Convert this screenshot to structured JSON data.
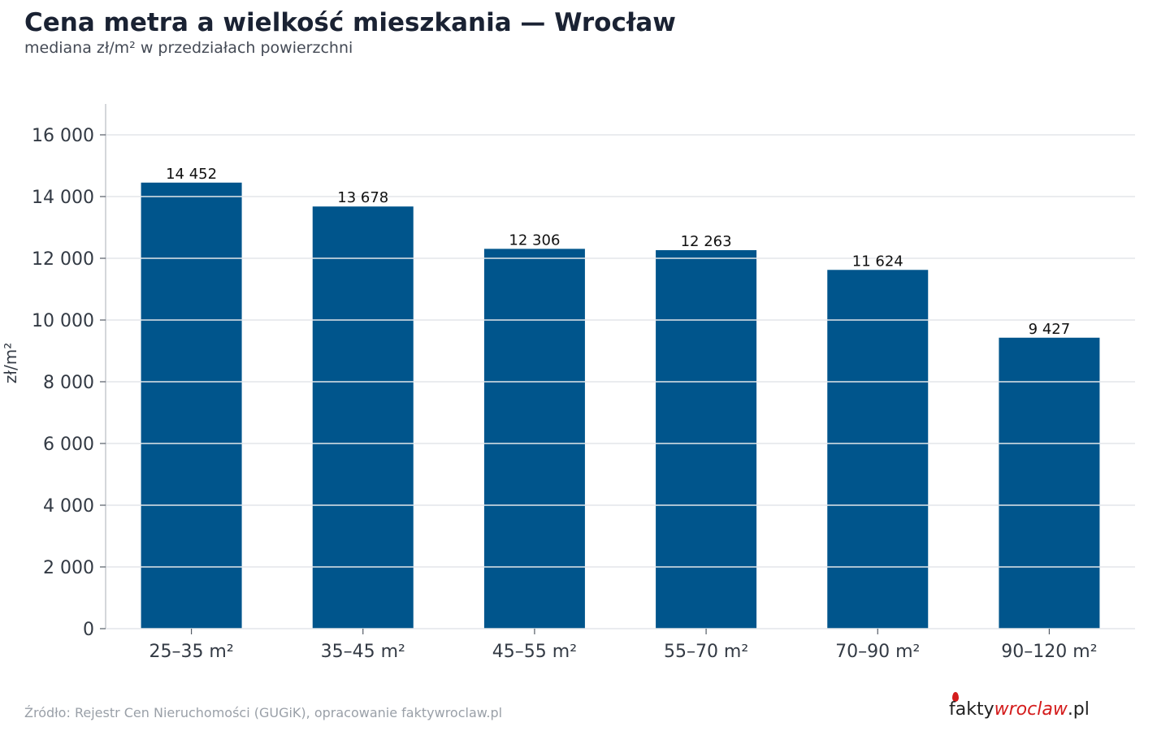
{
  "header": {
    "title": "Cena metra a wielkość mieszkania — Wrocław",
    "subtitle": "mediana zł/m² w przedziałach powierzchni"
  },
  "footer": {
    "source": "Źródło: Rejestr Cen Nieruchomości (GUGiK), opracowanie faktywroclaw.pl",
    "logo_part1": "fakty",
    "logo_part2": "wroclaw",
    "logo_part3": ".pl"
  },
  "colors": {
    "bar": "#00558c",
    "grid": "#e3e6ea",
    "axis": "#b8bcc2",
    "tick_text": "#333a44",
    "value_text": "#111111"
  },
  "chart_data": {
    "type": "bar",
    "title": "Cena metra a wielkość mieszkania — Wrocław",
    "subtitle": "mediana zł/m² w przedziałach powierzchni",
    "xlabel": "",
    "ylabel": "zł/m²",
    "categories": [
      "25–35 m²",
      "35–45 m²",
      "45–55 m²",
      "55–70 m²",
      "70–90 m²",
      "90–120 m²"
    ],
    "values": [
      14452,
      13678,
      12306,
      12263,
      11624,
      9427
    ],
    "value_labels": [
      "14 452",
      "13 678",
      "12 306",
      "12 263",
      "11 624",
      "9 427"
    ],
    "ylim": [
      0,
      17000
    ],
    "yticks": [
      0,
      2000,
      4000,
      6000,
      8000,
      10000,
      12000,
      14000,
      16000
    ],
    "ytick_labels": [
      "0",
      "2 000",
      "4 000",
      "6 000",
      "8 000",
      "10 000",
      "12 000",
      "14 000",
      "16 000"
    ],
    "grid": true,
    "grid_over_bars": true
  }
}
